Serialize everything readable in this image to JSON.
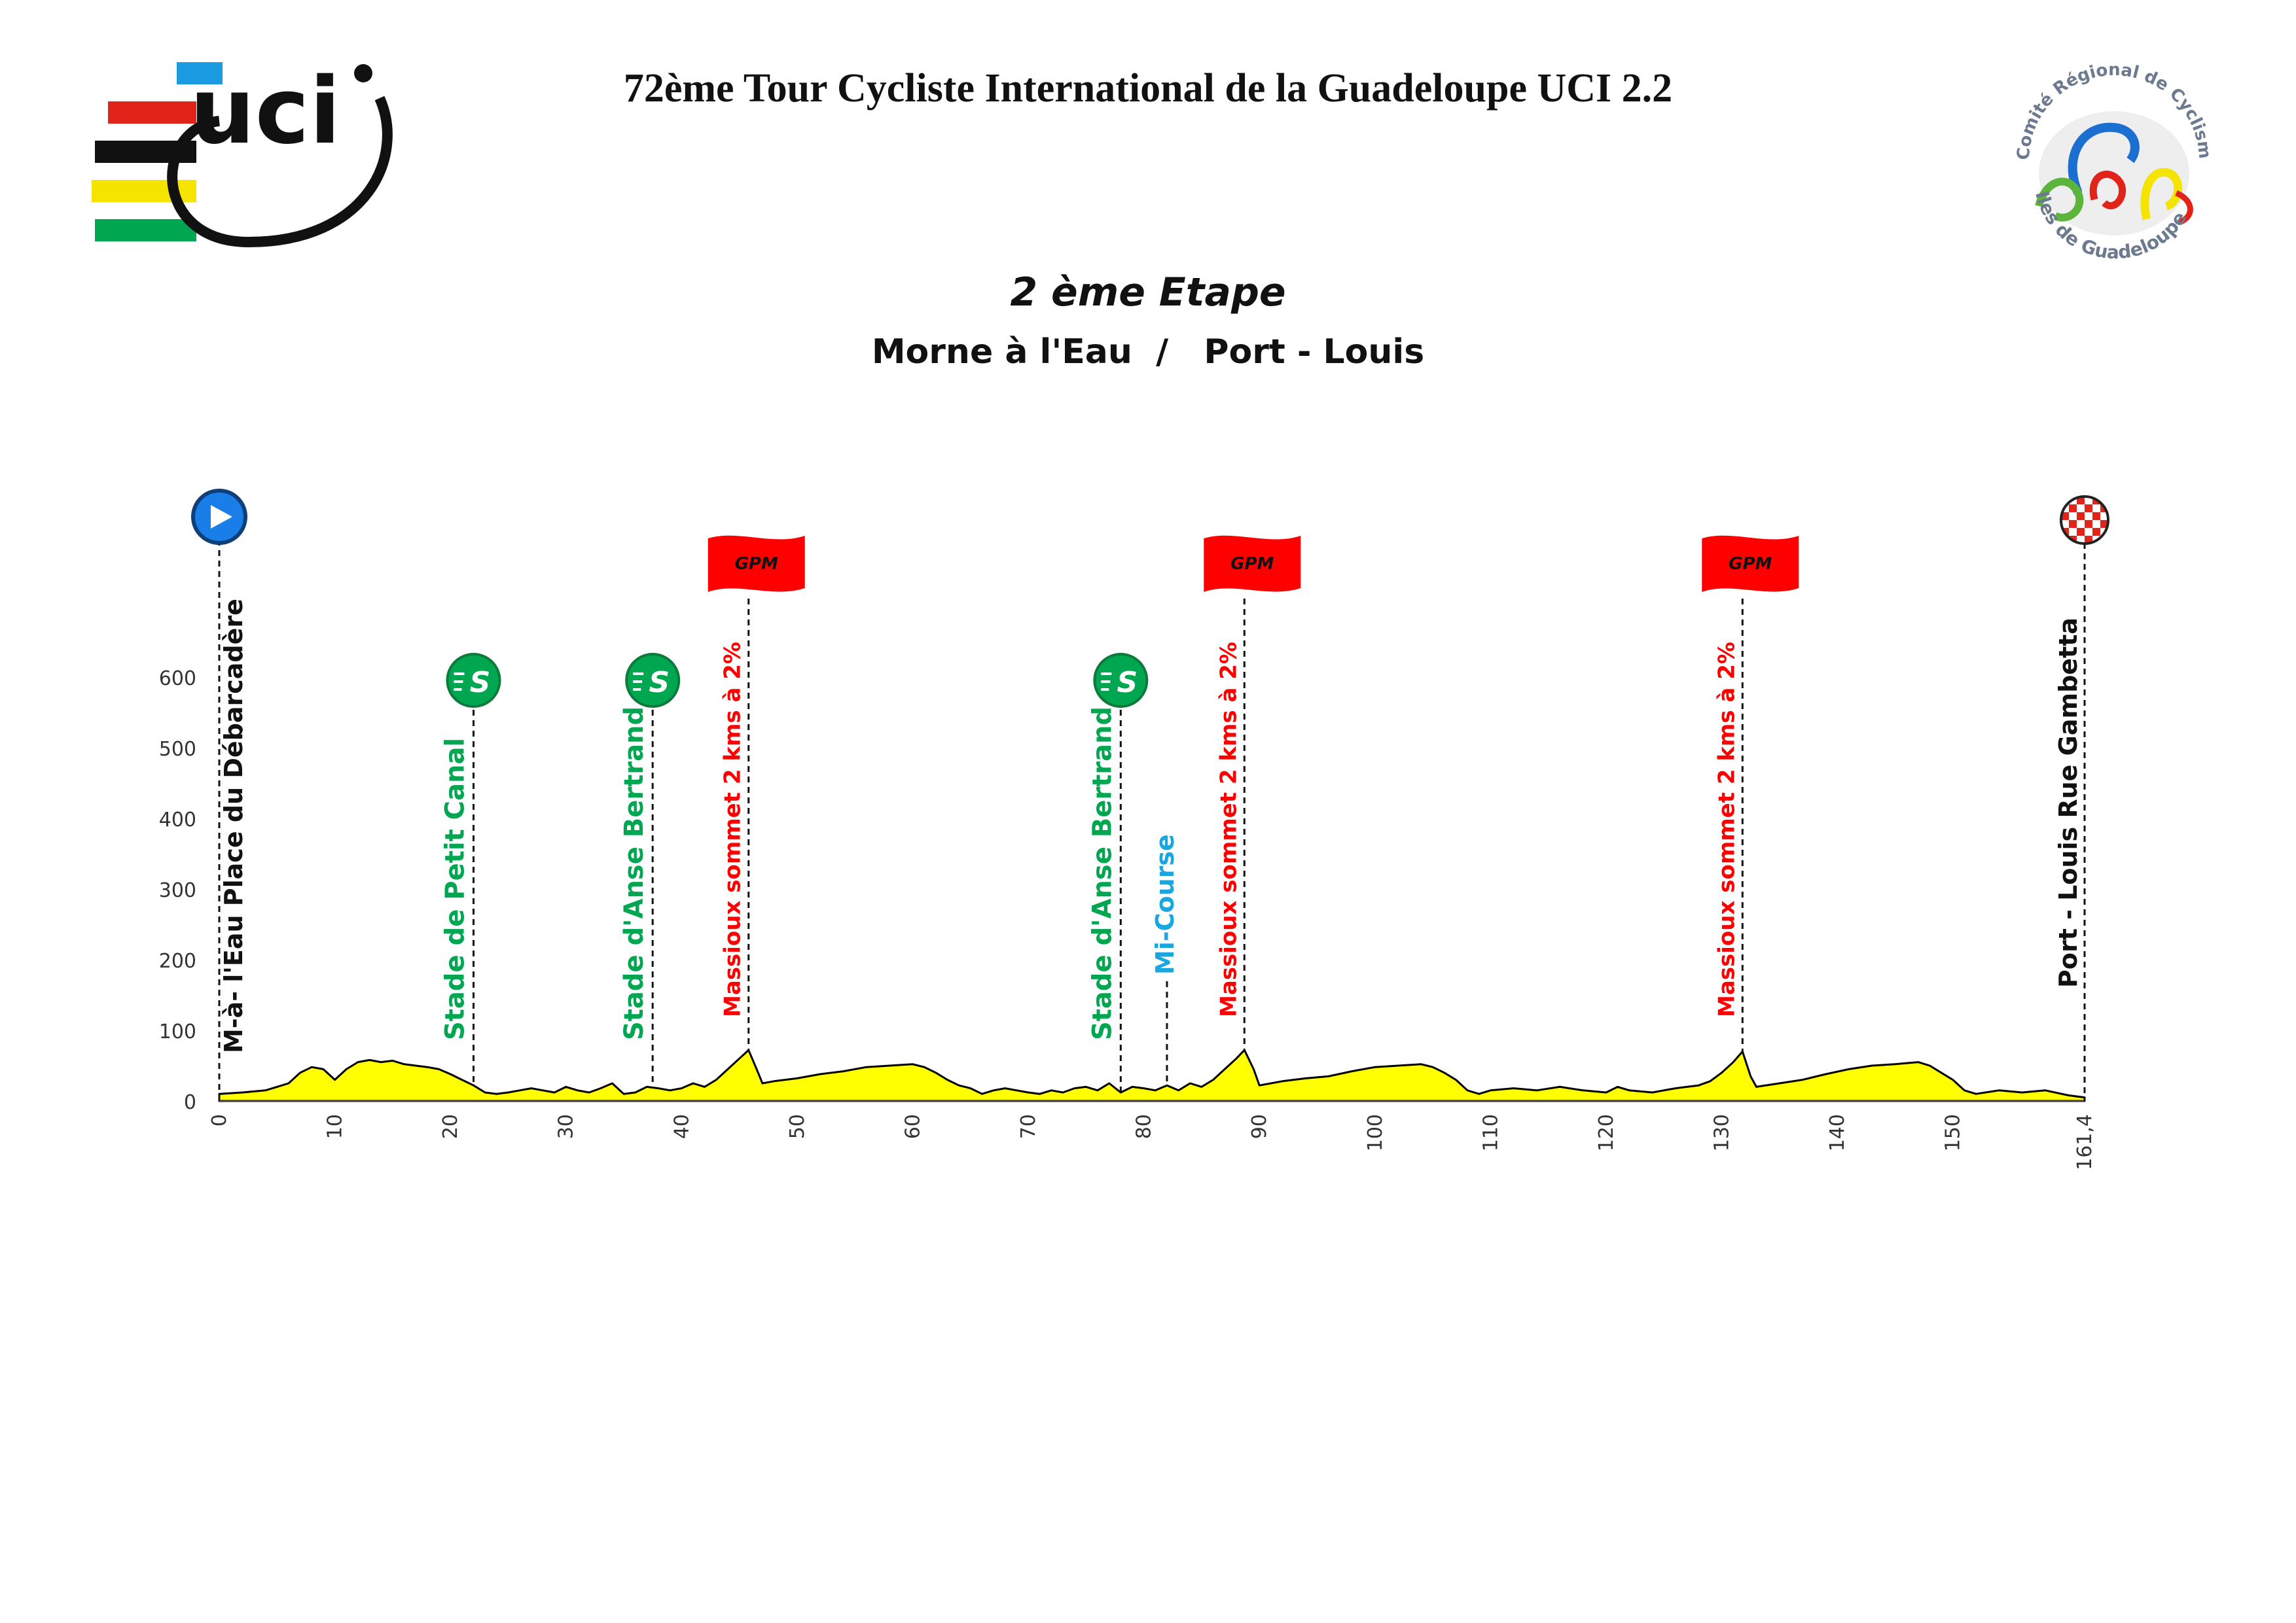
{
  "header": {
    "title": "72ème Tour Cycliste International de la Guadeloupe UCI 2.2",
    "stage": "2 ème  Etape",
    "route": "Morne à l'Eau  /   Port - Louis"
  },
  "logos": {
    "uci": {
      "text": "uci",
      "stripe_colors": [
        "#1b9ce2",
        "#e2231a",
        "#111111",
        "#f5e400",
        "#00a650"
      ]
    },
    "crc": {
      "ring_top": "Comité Régional de Cyclisme",
      "ring_bottom": "Iles de Guadeloupe",
      "colors": [
        "#1b6fd1",
        "#e2231a",
        "#5db43a",
        "#f5e400"
      ]
    }
  },
  "chart_data": {
    "type": "area",
    "fill_color": "#ffff00",
    "xlim": [
      0,
      161.4
    ],
    "ylim": [
      0,
      600
    ],
    "x_ticks": [
      "0",
      "10",
      "20",
      "30",
      "40",
      "50",
      "60",
      "70",
      "80",
      "90",
      "100",
      "110",
      "120",
      "130",
      "140",
      "150",
      "161,4"
    ],
    "x_tick_values": [
      0,
      10,
      20,
      30,
      40,
      50,
      60,
      70,
      80,
      90,
      100,
      110,
      120,
      130,
      140,
      150,
      161.4
    ],
    "y_ticks": [
      "0",
      "100",
      "200",
      "300",
      "400",
      "500",
      "600"
    ],
    "y_tick_values": [
      0,
      100,
      200,
      300,
      400,
      500,
      600
    ],
    "grid": false,
    "x": [
      0,
      2,
      4,
      5,
      6,
      7,
      8,
      9,
      10,
      11,
      12,
      13,
      14,
      15,
      16,
      17,
      18,
      19,
      20,
      21,
      22,
      23,
      24,
      25,
      26,
      27,
      28,
      29,
      30,
      31,
      32,
      33,
      34,
      35,
      36,
      37,
      38,
      39,
      40,
      41,
      42,
      43,
      44,
      45,
      45.8,
      46.5,
      47,
      48,
      50,
      52,
      54,
      56,
      58,
      60,
      61,
      62,
      63,
      64,
      65,
      66,
      67,
      68,
      69,
      70,
      71,
      72,
      73,
      74,
      75,
      76,
      77,
      78,
      79,
      80,
      81,
      82,
      83,
      84,
      85,
      86,
      87,
      88,
      88.7,
      89.5,
      90,
      92,
      94,
      96,
      98,
      100,
      102,
      104,
      105,
      106,
      107,
      108,
      109,
      110,
      112,
      114,
      116,
      118,
      120,
      121,
      122,
      124,
      126,
      127,
      128,
      129,
      130,
      131,
      131.8,
      132.5,
      133,
      135,
      137,
      139,
      141,
      143,
      145,
      147,
      148,
      149,
      150,
      151,
      152,
      154,
      156,
      158,
      160,
      161.4
    ],
    "y": [
      10,
      12,
      15,
      20,
      25,
      40,
      48,
      45,
      30,
      45,
      55,
      58,
      55,
      57,
      52,
      50,
      48,
      45,
      38,
      30,
      22,
      12,
      10,
      12,
      15,
      18,
      15,
      12,
      20,
      15,
      12,
      18,
      25,
      10,
      12,
      20,
      18,
      15,
      18,
      25,
      20,
      30,
      45,
      60,
      72,
      45,
      25,
      28,
      32,
      38,
      42,
      48,
      50,
      52,
      48,
      40,
      30,
      22,
      18,
      10,
      15,
      18,
      15,
      12,
      10,
      15,
      12,
      18,
      20,
      15,
      25,
      12,
      20,
      18,
      15,
      22,
      15,
      25,
      20,
      30,
      45,
      60,
      72,
      45,
      22,
      28,
      32,
      35,
      42,
      48,
      50,
      52,
      48,
      40,
      30,
      15,
      10,
      15,
      18,
      15,
      20,
      15,
      12,
      20,
      15,
      12,
      18,
      20,
      22,
      28,
      40,
      55,
      70,
      35,
      20,
      25,
      30,
      38,
      45,
      50,
      52,
      55,
      50,
      40,
      30,
      15,
      10,
      15,
      12,
      15,
      8,
      5
    ]
  },
  "markers": {
    "start": {
      "km": 0,
      "label": "M-à- l'Eau Place du Débarcadère",
      "color": "#1a7ee8"
    },
    "finish": {
      "km": 161.4,
      "label": "Port - Louis Rue Gambetta",
      "colors": [
        "#e2231a",
        "#ffffff"
      ]
    },
    "sprints": [
      {
        "km": 22,
        "label": "Stade de Petit Canal",
        "badge": "S",
        "color": "#00a650"
      },
      {
        "km": 37.5,
        "label": "Stade d'Anse Bertrand",
        "badge": "S",
        "color": "#00a650"
      },
      {
        "km": 78,
        "label": "Stade d'Anse Bertrand",
        "badge": "S",
        "color": "#00a650"
      }
    ],
    "mid_course": {
      "km": 82,
      "label": "Mi-Course",
      "color": "#1aa7e0"
    },
    "gpm": [
      {
        "km": 45.8,
        "flag": "GPM",
        "label": "Massioux sommet 2 kms à 2%",
        "color": "#ff0000"
      },
      {
        "km": 88.7,
        "flag": "GPM",
        "label": "Massioux sommet 2 kms à 2%",
        "color": "#ff0000"
      },
      {
        "km": 131.8,
        "flag": "GPM",
        "label": "Massioux sommet 2 kms à 2%",
        "color": "#ff0000"
      }
    ]
  }
}
